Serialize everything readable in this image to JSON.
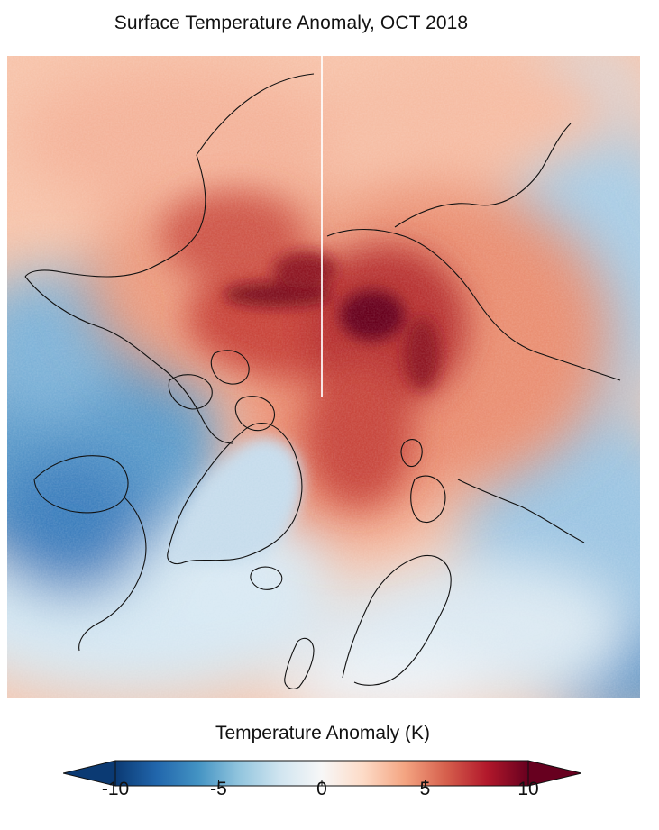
{
  "title": "Surface Temperature Anomaly, OCT 2018",
  "colorbar": {
    "label": "Temperature Anomaly (K)",
    "min": -10,
    "max": 10,
    "ticks": [
      "-10",
      "-5",
      "0",
      "5",
      "10"
    ],
    "extend": "both",
    "colors": [
      "#0b3a73",
      "#2166ac",
      "#4393c3",
      "#92c5de",
      "#d1e5f0",
      "#f7f7f7",
      "#fddbc7",
      "#f4a582",
      "#d6604d",
      "#b2182b",
      "#67001f"
    ]
  },
  "map": {
    "projection": "north polar stereographic",
    "region": "Arctic",
    "colormap": "diverging blue-white-red"
  }
}
